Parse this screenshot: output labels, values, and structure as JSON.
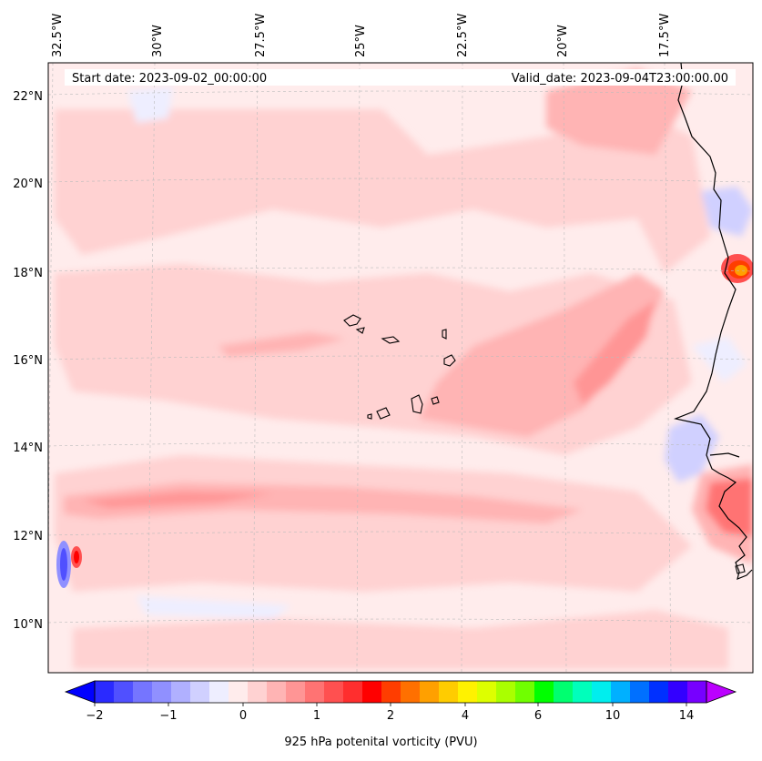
{
  "map": {
    "start_date": "Start date: 2023-09-02_00:00:00",
    "valid_date": "Valid_date: 2023-09-04T23:00:00.00",
    "lon_labels": [
      "32.5°W",
      "30°W",
      "27.5°W",
      "25°W",
      "22.5°W",
      "20°W",
      "17.5°W"
    ],
    "lat_labels": [
      "22°N",
      "20°N",
      "18°N",
      "16°N",
      "14°N",
      "12°N",
      "10°N"
    ],
    "colorbar": {
      "label": "925 hPa potenital vorticity (PVU)",
      "tick_labels": [
        "−2",
        "−1",
        "0",
        "1",
        "2",
        "4",
        "6",
        "10",
        "14"
      ],
      "colors": [
        "#0000ff",
        "#2a2aff",
        "#5050ff",
        "#7575ff",
        "#9090ff",
        "#b0b0ff",
        "#d0d0ff",
        "#eeeeff",
        "#ffecec",
        "#ffd2d2",
        "#ffb4b4",
        "#ff9595",
        "#ff7373",
        "#ff5050",
        "#ff2e2e",
        "#ff0000",
        "#ff3d00",
        "#ff7000",
        "#ffa000",
        "#ffcc00",
        "#fff200",
        "#ddff00",
        "#aaff00",
        "#70ff00",
        "#00ff00",
        "#00ff70",
        "#00ffbb",
        "#00eeee",
        "#00b0ff",
        "#0070ff",
        "#0030ff",
        "#3300ff",
        "#7700ff",
        "#bb00ff"
      ]
    }
  }
}
